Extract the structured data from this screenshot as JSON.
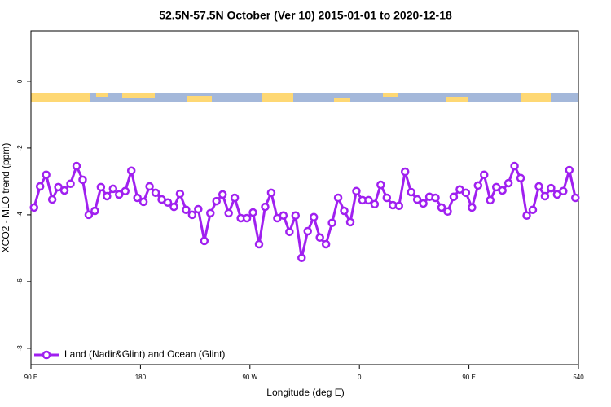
{
  "chart_data": {
    "type": "line",
    "title": "52.5N-57.5N October (Ver 10)   2015-01-01 to 2020-12-18",
    "x_label": "Longitude (deg E)",
    "y_label": "XCO2 - MLO trend (ppm)",
    "xlim": [
      90,
      540
    ],
    "xticks": [
      {
        "value": 90,
        "label": "90 E"
      },
      180,
      {
        "value": 270,
        "label": "90 W"
      },
      {
        "value": 360,
        "label": "0"
      },
      {
        "value": 450,
        "label": "90 E"
      },
      540
    ],
    "ylim": [
      -8.49,
      1.51
    ],
    "yticks": [
      0,
      -2,
      -4,
      -6,
      -8
    ],
    "legend": "bottom-left",
    "x": [
      92.5,
      97.5,
      102.5,
      107.5,
      112.5,
      117.5,
      122.5,
      127.5,
      132.5,
      137.5,
      142.5,
      147.5,
      152.5,
      157.5,
      162.5,
      167.5,
      172.5,
      177.5,
      182.5,
      187.5,
      192.5,
      197.5,
      202.5,
      207.5,
      212.5,
      217.5,
      222.5,
      227.5,
      232.5,
      237.5,
      242.5,
      247.5,
      252.5,
      257.5,
      262.5,
      267.5,
      272.5,
      277.5,
      282.5,
      287.5,
      292.5,
      297.5,
      302.5,
      307.5,
      312.5,
      317.5,
      322.5,
      327.5,
      332.5,
      337.5,
      342.5,
      347.5,
      352.5,
      357.5,
      362.5,
      367.5,
      372.5,
      377.5,
      382.5,
      387.5,
      392.5,
      397.5,
      402.5,
      407.5,
      412.5,
      417.5,
      422.5,
      427.5,
      432.5,
      437.5,
      442.5,
      447.5,
      452.5,
      457.5,
      462.5,
      467.5,
      472.5,
      477.5,
      482.5,
      487.5,
      492.5,
      497.5,
      502.5,
      507.5,
      512.5,
      517.5,
      522.5,
      527.5,
      532.5,
      537.5
    ],
    "series": [
      {
        "name": "Land (Nadir&Glint) and Ocean (Glint)",
        "color": "#a020f0",
        "values": [
          -3.78,
          -3.15,
          -2.8,
          -3.54,
          -3.17,
          -3.27,
          -3.07,
          -2.54,
          -2.95,
          -4.0,
          -3.88,
          -3.17,
          -3.44,
          -3.22,
          -3.39,
          -3.29,
          -2.68,
          -3.49,
          -3.61,
          -3.15,
          -3.34,
          -3.54,
          -3.63,
          -3.76,
          -3.37,
          -3.85,
          -4.0,
          -3.83,
          -4.78,
          -3.95,
          -3.59,
          -3.39,
          -3.95,
          -3.49,
          -4.1,
          -4.1,
          -3.93,
          -4.88,
          -3.76,
          -3.34,
          -4.1,
          -4.02,
          -4.51,
          -4.02,
          -5.29,
          -4.49,
          -4.07,
          -4.68,
          -4.88,
          -4.24,
          -3.49,
          -3.88,
          -4.22,
          -3.29,
          -3.56,
          -3.56,
          -3.68,
          -3.1,
          -3.49,
          -3.71,
          -3.73,
          -2.71,
          -3.32,
          -3.54,
          -3.66,
          -3.46,
          -3.49,
          -3.78,
          -3.9,
          -3.46,
          -3.24,
          -3.34,
          -3.78,
          -3.12,
          -2.8,
          -3.56,
          -3.17,
          -3.27,
          -3.05,
          -2.54,
          -2.9,
          -4.02,
          -3.85,
          -3.15,
          -3.44,
          -3.2,
          -3.39,
          -3.29,
          -2.66,
          -3.49
        ]
      }
    ]
  }
}
